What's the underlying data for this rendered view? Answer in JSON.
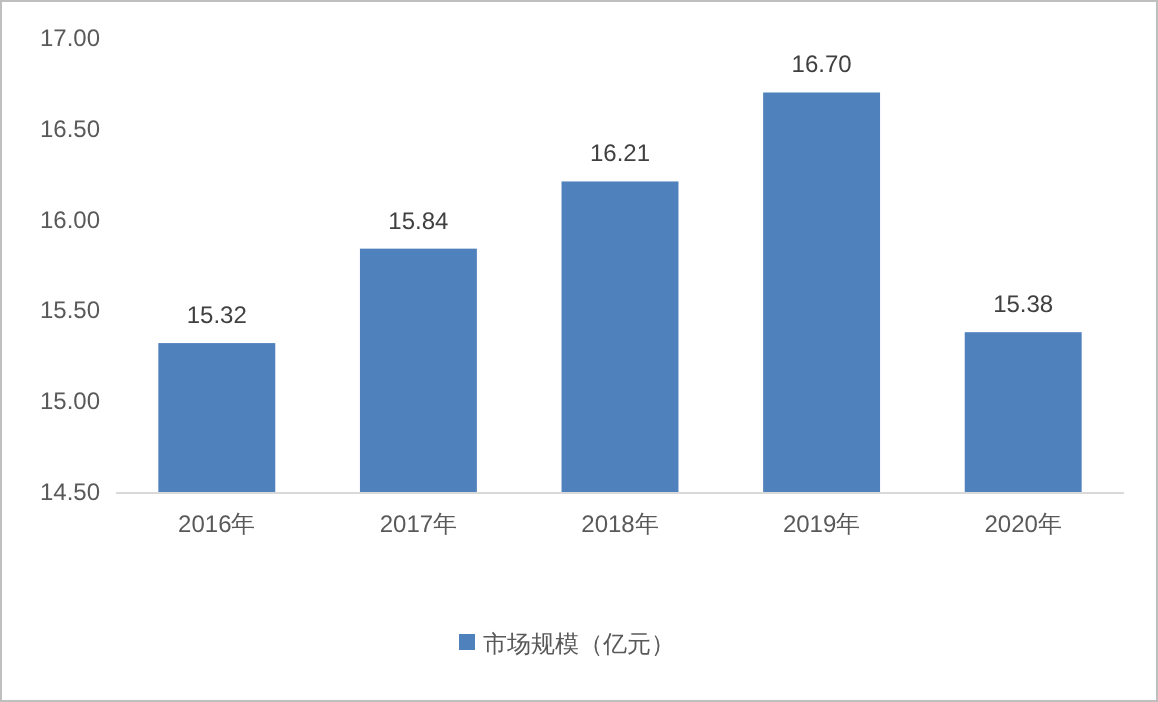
{
  "chart_data": {
    "type": "bar",
    "categories": [
      "2016年",
      "2017年",
      "2018年",
      "2019年",
      "2020年"
    ],
    "series": [
      {
        "name": "市场规模（亿元）",
        "color": "#4f81bd",
        "values": [
          15.32,
          15.84,
          16.21,
          16.7,
          15.38
        ],
        "value_labels": [
          "15.32",
          "15.84",
          "16.21",
          "16.70",
          "15.38"
        ]
      }
    ],
    "ylim": [
      14.5,
      17
    ],
    "yticks": [
      {
        "value": 14.5,
        "label": "14.50"
      },
      {
        "value": 15,
        "label": "15.00"
      },
      {
        "value": 15.5,
        "label": "15.50"
      },
      {
        "value": 16,
        "label": "16.00"
      },
      {
        "value": 16.5,
        "label": "16.50"
      },
      {
        "value": 17,
        "label": "17.00"
      }
    ],
    "grid": false,
    "legend": "bottom"
  }
}
